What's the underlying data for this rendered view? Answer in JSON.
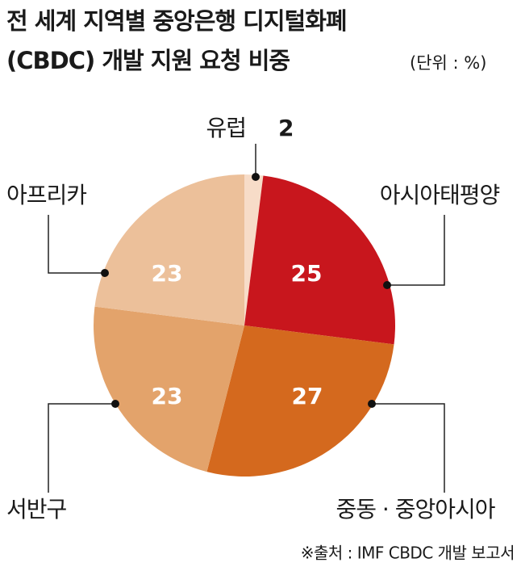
{
  "chart_data": {
    "type": "pie",
    "title": [
      "전 세계 지역별 중앙은행 디지털화폐",
      "(CBDC) 개발 지원 요청 비중"
    ],
    "unit_note": "(단위 : %)",
    "categories": [
      "유럽",
      "아시아태평양",
      "중동 · 중앙아시아",
      "서반구",
      "아프리카"
    ],
    "values": [
      2,
      25,
      27,
      23,
      23
    ],
    "colors": [
      "#f7dcc8",
      "#c8161d",
      "#d4691e",
      "#e3a36b",
      "#ecc09a"
    ],
    "source": "※출처 : IMF CBDC 개발 보고서"
  }
}
